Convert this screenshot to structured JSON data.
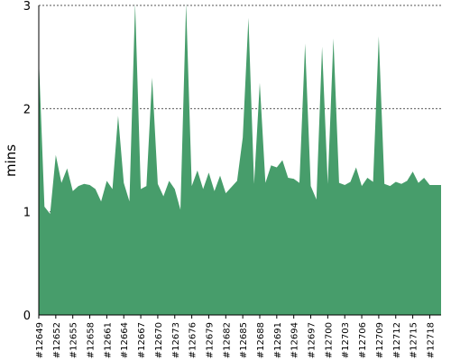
{
  "chart_data": {
    "type": "area",
    "title": "",
    "xlabel": "",
    "ylabel": "mins",
    "ylim": [
      0,
      3
    ],
    "y_ticks": [
      "0",
      "1",
      "2",
      "3"
    ],
    "grid": "horizontal dashed",
    "legend": "none",
    "x_tick_labels": [
      "#12649",
      "#12652",
      "#12655",
      "#12658",
      "#12661",
      "#12664",
      "#12667",
      "#12670",
      "#12673",
      "#12676",
      "#12679",
      "#12682",
      "#12685",
      "#12688",
      "#12691",
      "#12694",
      "#12697",
      "#12700",
      "#12703",
      "#12706",
      "#12709",
      "#12712",
      "#12715",
      "#12718"
    ],
    "series": [
      {
        "x": [
          "#12649",
          "#12650",
          "#12651",
          "#12652",
          "#12653",
          "#12654",
          "#12655",
          "#12656",
          "#12657",
          "#12658",
          "#12659",
          "#12660",
          "#12661",
          "#12662",
          "#12663",
          "#12664",
          "#12665",
          "#12666",
          "#12667",
          "#12668",
          "#12669",
          "#12670",
          "#12671",
          "#12672",
          "#12673",
          "#12674",
          "#12675",
          "#12676",
          "#12677",
          "#12678",
          "#12679",
          "#12680",
          "#12681",
          "#12682",
          "#12683",
          "#12684",
          "#12685",
          "#12686",
          "#12687",
          "#12688",
          "#12689",
          "#12690",
          "#12691",
          "#12692",
          "#12693",
          "#12694",
          "#12695",
          "#12696",
          "#12697",
          "#12698",
          "#12699",
          "#12700",
          "#12701",
          "#12702",
          "#12703",
          "#12704",
          "#12705",
          "#12706",
          "#12707",
          "#12708",
          "#12709",
          "#12710",
          "#12711",
          "#12712",
          "#12713",
          "#12714",
          "#12715",
          "#12716",
          "#12717",
          "#12718",
          "#12719",
          "#12720"
        ],
        "values": [
          2.5,
          1.05,
          0.98,
          1.55,
          1.28,
          1.42,
          1.2,
          1.25,
          1.27,
          1.26,
          1.22,
          1.1,
          1.3,
          1.22,
          1.93,
          1.28,
          1.1,
          3.02,
          1.22,
          1.25,
          2.3,
          1.27,
          1.15,
          1.3,
          1.22,
          1.02,
          3.02,
          1.25,
          1.4,
          1.22,
          1.38,
          1.2,
          1.35,
          1.18,
          1.24,
          1.3,
          1.72,
          2.88,
          1.27,
          2.25,
          1.28,
          1.45,
          1.43,
          1.5,
          1.33,
          1.32,
          1.28,
          2.63,
          1.25,
          1.12,
          2.6,
          1.27,
          2.68,
          1.28,
          1.26,
          1.29,
          1.43,
          1.25,
          1.33,
          1.29,
          2.7,
          1.27,
          1.25,
          1.29,
          1.27,
          1.3,
          1.39,
          1.28,
          1.33,
          1.26,
          1.26,
          1.26
        ],
        "color": "#479d6b"
      }
    ]
  }
}
